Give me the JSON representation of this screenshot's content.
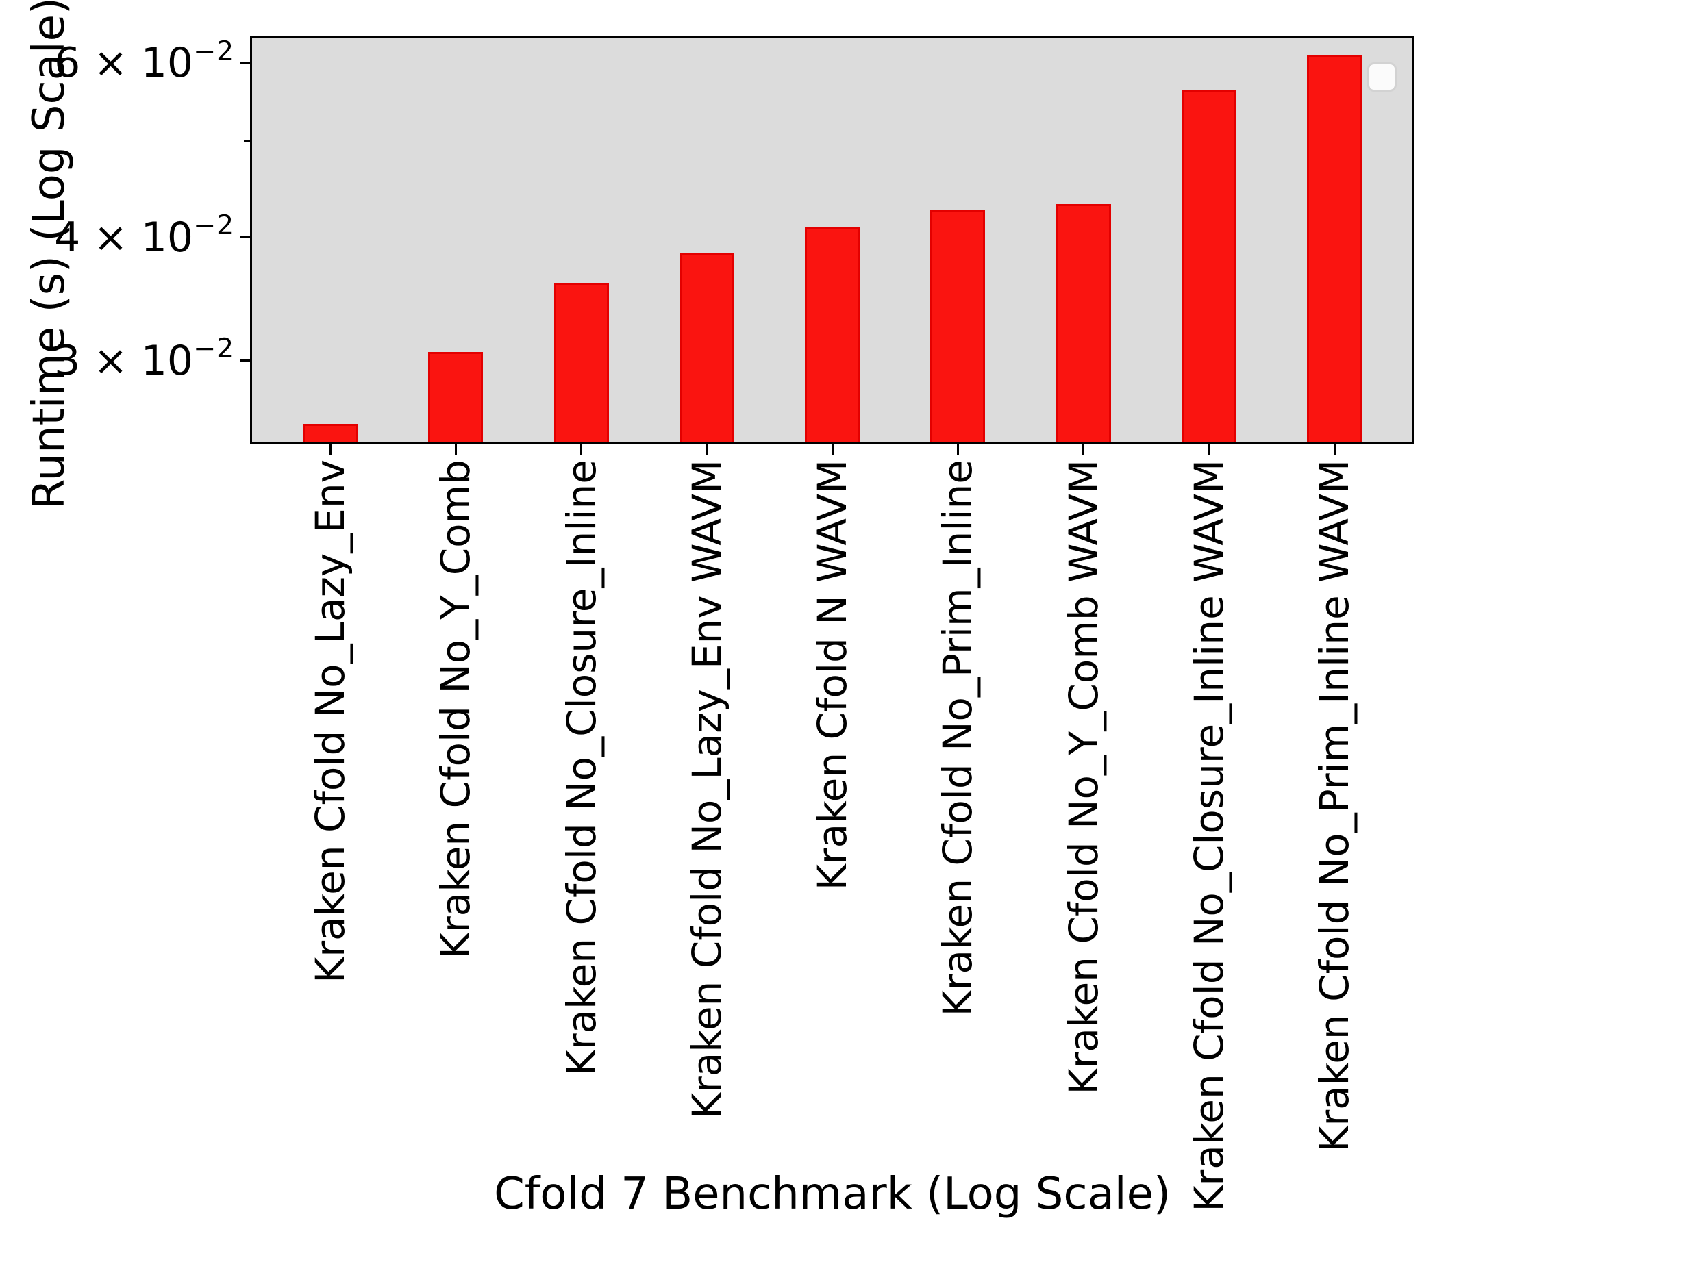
{
  "figure": {
    "background": "#ffffff",
    "plot_background": "#dcdcdc",
    "axis_color": "#000000",
    "bar_fill": "#fa1410",
    "bar_edge": "#e30000"
  },
  "chart_data": {
    "type": "bar",
    "title": "",
    "xlabel": "Cfold 7 Benchmark (Log Scale)",
    "ylabel": "Runtime (s) (Log Scale)",
    "yscale": "log",
    "ylim": [
      0.0248,
      0.0637
    ],
    "grid": false,
    "legend": {
      "visible": true,
      "position": "upper right",
      "entries": []
    },
    "categories": [
      "Kraken Cfold No_Lazy_Env",
      "Kraken Cfold No_Y_Comb",
      "Kraken Cfold No_Closure_Inline",
      "Kraken Cfold No_Lazy_Env WAVM",
      "Kraken Cfold N WAVM",
      "Kraken Cfold No_Prim_Inline",
      "Kraken Cfold No_Y_Comb WAVM",
      "Kraken Cfold No_Closure_Inline WAVM",
      "Kraken Cfold No_Prim_Inline WAVM"
    ],
    "values": [
      0.0259,
      0.0306,
      0.036,
      0.0385,
      0.041,
      0.0427,
      0.0432,
      0.0564,
      0.0612
    ],
    "yticks": [
      {
        "value": 0.06,
        "mantissa": "6",
        "base": "10",
        "exponent": "−2",
        "labeled": true
      },
      {
        "value": 0.05,
        "mantissa": "5",
        "base": "10",
        "exponent": "−2",
        "labeled": false
      },
      {
        "value": 0.04,
        "mantissa": "4",
        "base": "10",
        "exponent": "−2",
        "labeled": true
      },
      {
        "value": 0.03,
        "mantissa": "3",
        "base": "10",
        "exponent": "−2",
        "labeled": true
      }
    ]
  }
}
